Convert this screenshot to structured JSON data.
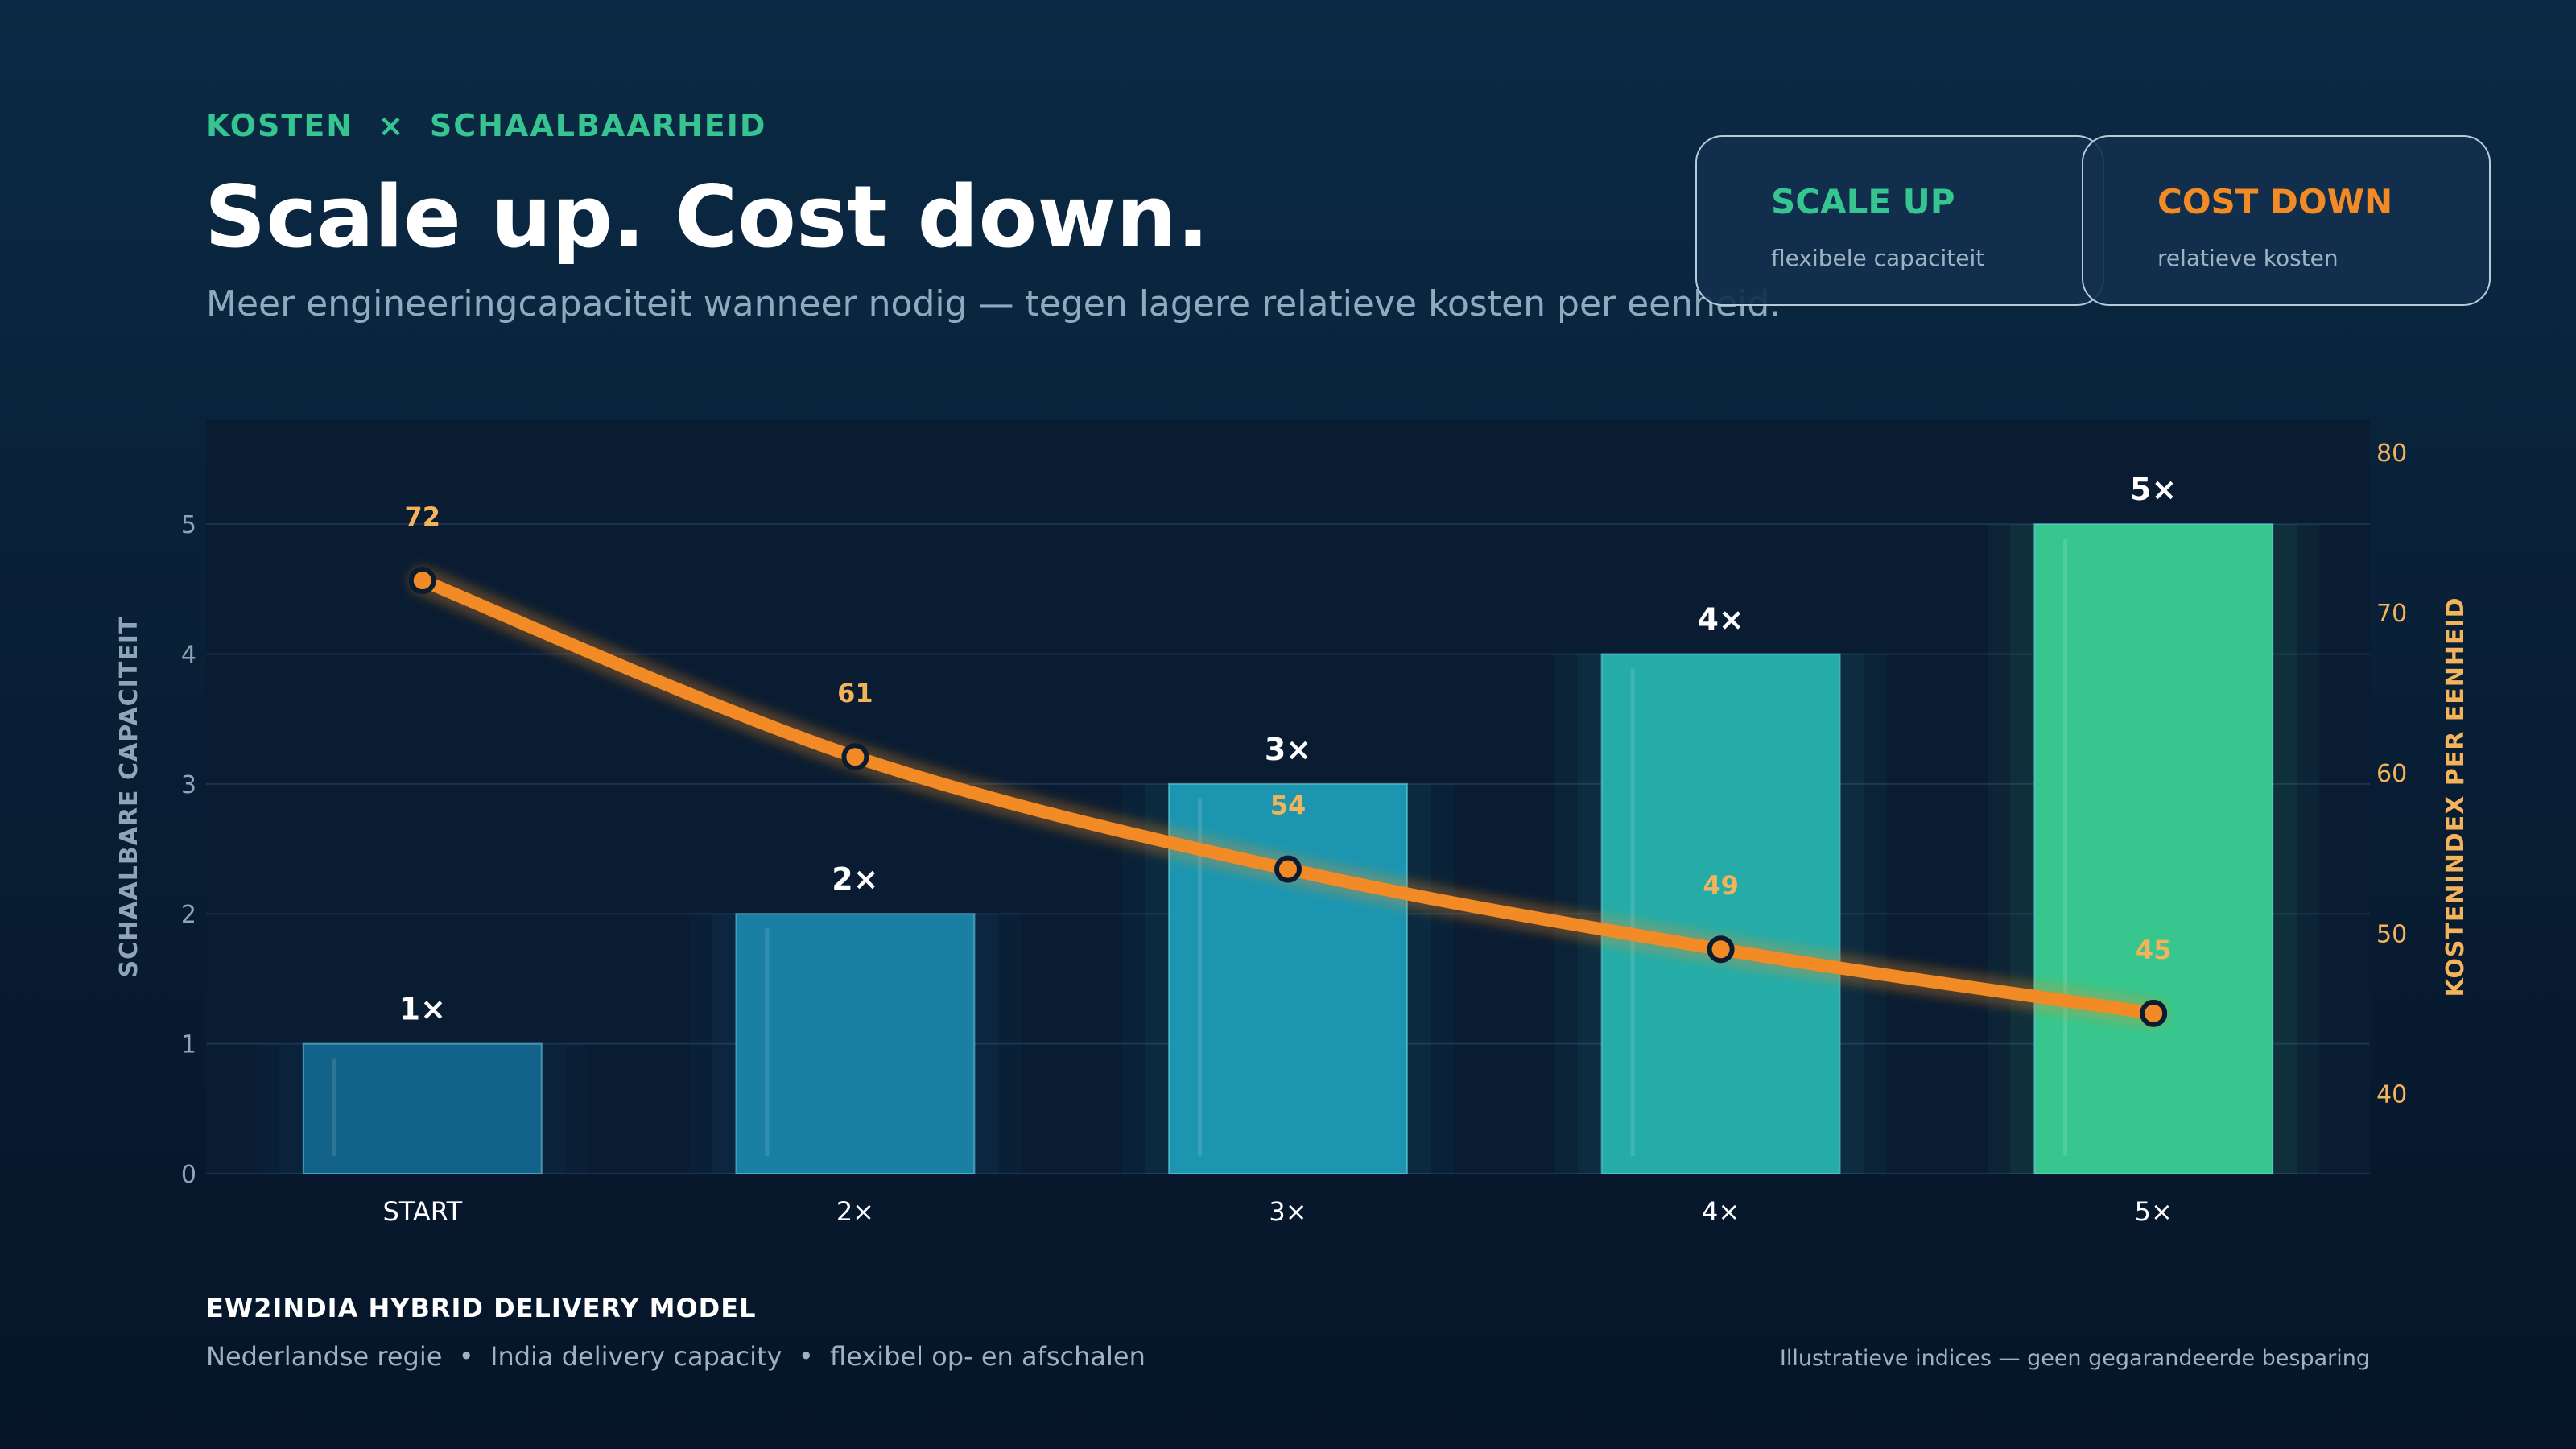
{
  "header": {
    "eyebrow": "KOSTEN  ×  SCHAALBAARHEID",
    "title": "Scale up. Cost down.",
    "subtitle": "Meer engineeringcapaciteit wanneer nodig — tegen lagere relatieve kosten per eenheid."
  },
  "cards": [
    {
      "title": "SCALE UP",
      "subtitle": "flexibele capaciteit",
      "color": "#36c490"
    },
    {
      "title": "COST DOWN",
      "subtitle": "relatieve kosten",
      "color": "#f28b25"
    }
  ],
  "chart_data": {
    "type": "bar",
    "categories": [
      "START",
      "2×",
      "3×",
      "4×",
      "5×"
    ],
    "series": [
      {
        "type": "bar",
        "axis": "left",
        "values": [
          1,
          2,
          3,
          4,
          5
        ],
        "labels": [
          "1×",
          "2×",
          "3×",
          "4×",
          "5×"
        ],
        "colors": [
          "#12628a",
          "#197fa3",
          "#1c96b0",
          "#26aca8",
          "#36c68e"
        ]
      },
      {
        "type": "line",
        "axis": "right",
        "values": [
          72,
          61,
          54,
          49,
          45
        ],
        "labels": [
          "72",
          "61",
          "54",
          "49",
          "45"
        ],
        "color": "#f28b25",
        "label_color": "#f3b35a"
      }
    ],
    "ylabel_left": "SCHAALBARE CAPACITEIT",
    "ylabel_right": "KOSTENINDEX PER EENHEID",
    "ylim_left": [
      0,
      5.8
    ],
    "yticks_left": [
      0,
      1,
      2,
      3,
      4,
      5
    ],
    "ylim_right": [
      35,
      82
    ],
    "yticks_right": [
      40,
      50,
      60,
      70,
      80
    ],
    "grid": true
  },
  "footer": {
    "title": "EW2INDIA HYBRID DELIVERY MODEL",
    "subtitle": "Nederlandse regie  •  India delivery capacity  •  flexibel op- en afschalen",
    "note": "Illustratieve indices — geen gegarandeerde besparing"
  }
}
